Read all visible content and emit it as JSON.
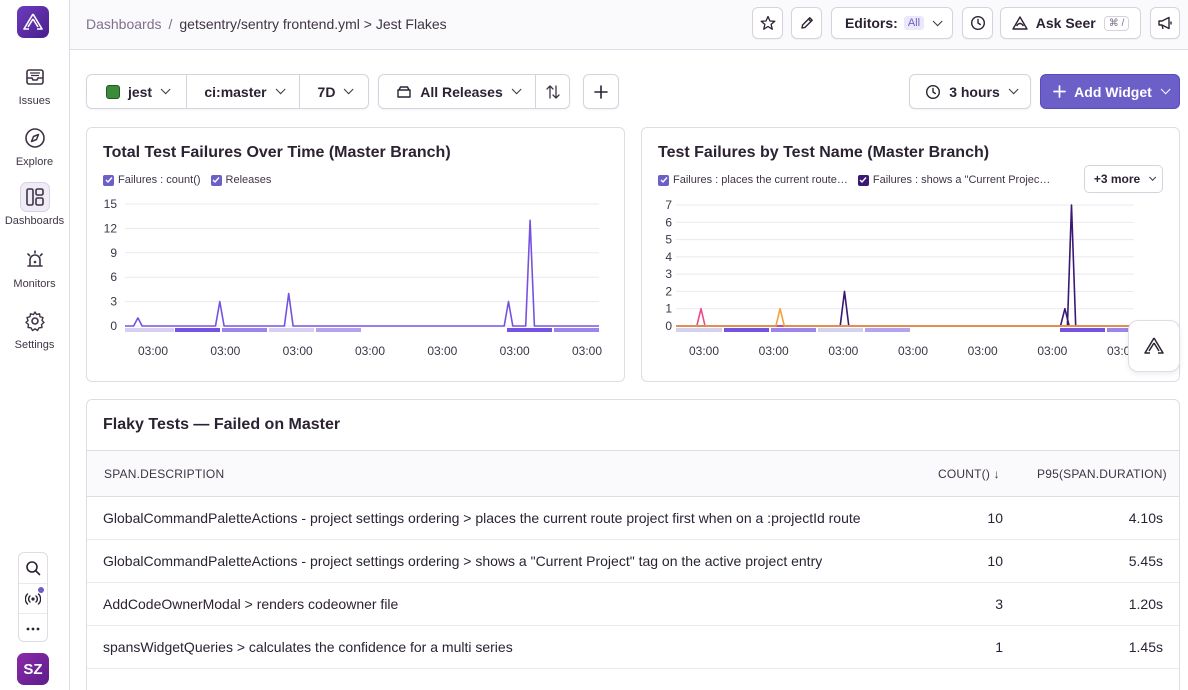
{
  "sidebar": {
    "items": [
      {
        "label": "Issues",
        "icon": "inbox-icon"
      },
      {
        "label": "Explore",
        "icon": "compass-icon"
      },
      {
        "label": "Dashboards",
        "icon": "dashboards-icon"
      },
      {
        "label": "Monitors",
        "icon": "siren-icon"
      },
      {
        "label": "Settings",
        "icon": "gear-icon"
      }
    ],
    "avatar": "SZ"
  },
  "header": {
    "breadcrumb_root": "Dashboards",
    "breadcrumb_sep": "/",
    "breadcrumb_current": "getsentry/sentry frontend.yml > Jest Flakes",
    "editors_label": "Editors:",
    "editors_value": "All",
    "ask_seer": "Ask Seer",
    "ask_seer_kbd": "⌘ /"
  },
  "filters": {
    "project": "jest",
    "environment": "ci:master",
    "period": "7D",
    "releases": "All Releases",
    "refresh": "3 hours",
    "add_widget": "Add Widget"
  },
  "widget1": {
    "title": "Total Test Failures Over Time (Master Branch)",
    "legend": [
      "Failures : count()",
      "Releases"
    ]
  },
  "widget2": {
    "title": "Test Failures by Test Name (Master Branch)",
    "legend": [
      "Failures : places the current route…",
      "Failures : shows a \"Current Projec…"
    ],
    "more": "+3 more"
  },
  "colors": {
    "accent": "#6c5fc7",
    "series_purple": "#7553e0",
    "series_dark": "#3a1873",
    "series_pink": "#e94c8c",
    "series_orange": "#f2a33c"
  },
  "chart_data": [
    {
      "type": "line",
      "title": "Total Test Failures Over Time (Master Branch)",
      "x_ticks": [
        "03:00",
        "03:00",
        "03:00",
        "03:00",
        "03:00",
        "03:00",
        "03:00"
      ],
      "y_ticks": [
        "0",
        "3",
        "6",
        "9",
        "12",
        "15"
      ],
      "ylim": [
        0,
        15
      ],
      "series": [
        {
          "name": "Failures : count()",
          "values": [
            0,
            0,
            0,
            1,
            0,
            0,
            0,
            0,
            0,
            0,
            0,
            0,
            0,
            0,
            0,
            0,
            0,
            0,
            0,
            0,
            0,
            0,
            3,
            0,
            0,
            0,
            0,
            0,
            0,
            0,
            0,
            0,
            0,
            0,
            0,
            0,
            0,
            0,
            4,
            0,
            0,
            0,
            0,
            0,
            0,
            0,
            0,
            0,
            0,
            0,
            0,
            0,
            0,
            0,
            0,
            0,
            0,
            0,
            0,
            0,
            0,
            0,
            0,
            0,
            0,
            0,
            0,
            0,
            0,
            0,
            0,
            0,
            0,
            0,
            0,
            0,
            0,
            0,
            0,
            0,
            0,
            0,
            0,
            0,
            0,
            0,
            0,
            0,
            0,
            3,
            0,
            0,
            0,
            0,
            13,
            0,
            0,
            0,
            0,
            0,
            0,
            0,
            0,
            0,
            0,
            0,
            0,
            0,
            0,
            0,
            0
          ]
        },
        {
          "name": "Releases",
          "values": []
        }
      ]
    },
    {
      "type": "line",
      "title": "Test Failures by Test Name (Master Branch)",
      "x_ticks": [
        "03:00",
        "03:00",
        "03:00",
        "03:00",
        "03:00",
        "03:00",
        "03:00"
      ],
      "y_ticks": [
        "0",
        "1",
        "2",
        "3",
        "4",
        "5",
        "6",
        "7"
      ],
      "ylim": [
        0,
        7
      ],
      "series": [
        {
          "name": "Failures : places the current route…",
          "values": [
            0,
            0,
            0,
            0,
            0,
            0,
            0,
            0,
            0,
            0,
            0,
            0,
            0,
            0,
            0,
            0,
            0,
            0,
            0,
            0,
            0,
            0,
            0,
            0,
            0,
            0,
            0,
            0,
            0,
            0,
            0,
            0,
            0,
            0,
            0,
            0,
            0,
            0,
            0,
            0,
            0,
            0,
            0,
            0,
            0,
            0,
            0,
            0,
            0,
            0,
            0,
            0,
            0,
            0,
            0,
            0,
            0,
            0,
            0,
            0,
            0,
            0,
            0,
            0,
            0,
            0,
            0,
            0,
            0,
            0,
            0,
            0,
            0,
            0,
            0,
            0,
            0,
            0,
            0,
            0,
            0,
            0,
            0,
            0,
            0,
            0,
            0,
            0,
            0,
            0,
            0,
            0,
            0,
            0,
            0,
            7,
            0,
            0,
            0,
            0,
            0,
            0,
            0,
            0,
            0,
            0,
            0,
            0,
            0,
            0,
            0
          ]
        },
        {
          "name": "Failures : shows a \"Current Projec…",
          "values": [
            0,
            0,
            0,
            0,
            0,
            0,
            0,
            0,
            0,
            0,
            0,
            0,
            0,
            0,
            0,
            0,
            0,
            0,
            0,
            0,
            0,
            0,
            0,
            0,
            0,
            0,
            0,
            0,
            0,
            0,
            0,
            0,
            0,
            0,
            0,
            0,
            0,
            0,
            0,
            2,
            0,
            0,
            0,
            0,
            0,
            0,
            0,
            0,
            0,
            0,
            0,
            0,
            0,
            0,
            0,
            0,
            0,
            0,
            0,
            0,
            0,
            0,
            0,
            0,
            0,
            0,
            0,
            0,
            0,
            0,
            0,
            0,
            0,
            0,
            0,
            0,
            0,
            0,
            0,
            0,
            0,
            0,
            0,
            0,
            0,
            0,
            0,
            0,
            0,
            0,
            1,
            0,
            0,
            0,
            0,
            0,
            0,
            0,
            0,
            0,
            0,
            0,
            0,
            0,
            0,
            0,
            0
          ]
        },
        {
          "values": [
            0,
            0,
            0,
            0,
            0,
            0,
            1,
            0,
            0,
            0,
            0,
            0,
            0,
            0,
            0,
            0,
            0,
            0,
            0,
            0,
            0,
            0,
            0,
            0,
            0,
            0,
            0,
            0,
            0,
            0,
            0,
            0,
            0,
            0,
            0,
            0,
            0,
            0,
            0,
            0,
            0,
            0,
            0,
            0,
            0,
            0,
            0,
            0,
            0,
            0,
            0,
            0,
            0,
            0,
            0,
            0,
            0,
            0,
            0,
            0,
            0,
            0,
            0,
            0,
            0,
            0,
            0,
            0,
            0,
            0,
            0,
            0,
            0,
            0,
            0,
            0,
            0,
            0,
            0,
            0,
            0,
            0,
            0,
            0,
            0,
            0,
            0,
            0,
            0,
            0,
            0,
            0,
            0,
            0,
            0,
            0,
            0,
            0,
            0,
            0,
            0,
            0,
            0,
            0,
            0,
            0,
            0,
            0,
            0,
            0,
            0
          ]
        },
        {
          "values": [
            0,
            0,
            0,
            0,
            0,
            0,
            0,
            0,
            0,
            0,
            0,
            0,
            0,
            0,
            0,
            0,
            0,
            0,
            0,
            0,
            0,
            0,
            0,
            0,
            0,
            1,
            0,
            0,
            0,
            0,
            0,
            0,
            0,
            0,
            0,
            0,
            0,
            0,
            0,
            0,
            0,
            0,
            0,
            0,
            0,
            0,
            0,
            0,
            0,
            0,
            0,
            0,
            0,
            0,
            0,
            0,
            0,
            0,
            0,
            0,
            0,
            0,
            0,
            0,
            0,
            0,
            0,
            0,
            0,
            0,
            0,
            0,
            0,
            0,
            0,
            0,
            0,
            0,
            0,
            0,
            0,
            0,
            0,
            0,
            0,
            0,
            0,
            0,
            0,
            0,
            0,
            0,
            0,
            0,
            0,
            0,
            0,
            0,
            0,
            0,
            0,
            0,
            0,
            0,
            0,
            0,
            0,
            0,
            0,
            0,
            0
          ]
        }
      ]
    }
  ],
  "table": {
    "title": "Flaky Tests — Failed on Master",
    "columns": [
      "SPAN.DESCRIPTION",
      "COUNT() ↓",
      "P95(SPAN.DURATION)"
    ],
    "rows": [
      {
        "description": "GlobalCommandPaletteActions - project settings ordering > places the current route project first when on a :projectId route",
        "count": "10",
        "p95": "4.10s"
      },
      {
        "description": "GlobalCommandPaletteActions - project settings ordering > shows a \"Current Project\" tag on the active project entry",
        "count": "10",
        "p95": "5.45s"
      },
      {
        "description": "AddCodeOwnerModal > renders codeowner file",
        "count": "3",
        "p95": "1.20s"
      },
      {
        "description": "spansWidgetQueries > calculates the confidence for a multi series",
        "count": "1",
        "p95": "1.45s"
      }
    ]
  }
}
